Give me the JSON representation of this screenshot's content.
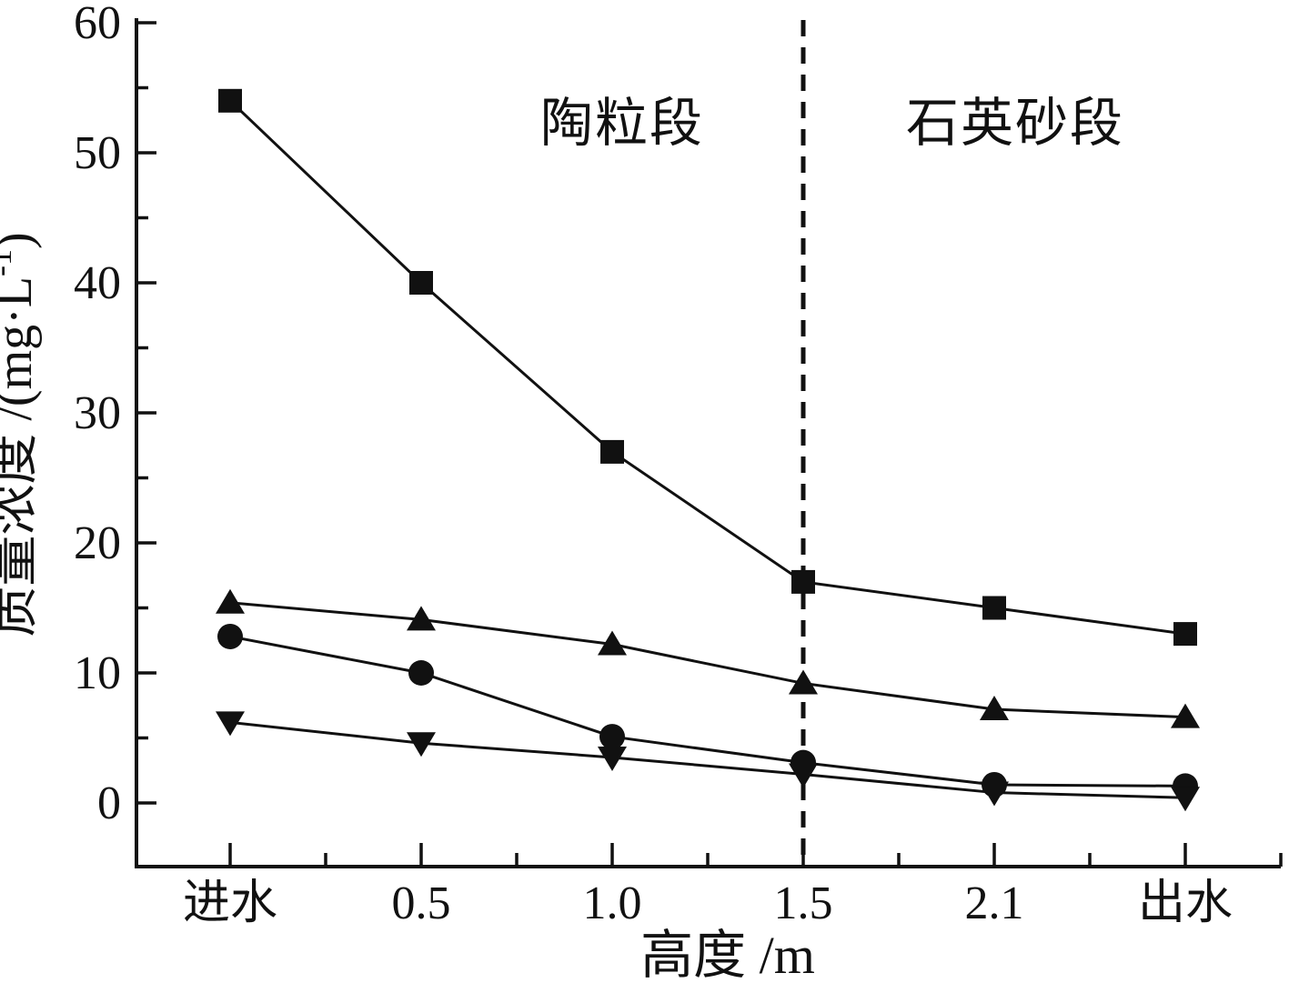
{
  "chart_data": {
    "type": "line",
    "title": "",
    "xlabel": "高度 /m",
    "ylabel": "质量浓度 /(mg·L⁻¹)",
    "ylabel_parts": {
      "prefix": "质量浓度 /(mg·L",
      "sup": "-1",
      "suffix": ")"
    },
    "categories": [
      "进水",
      "0.5",
      "1.0",
      "1.5",
      "2.1",
      "出水"
    ],
    "series": [
      {
        "name": "square-series",
        "marker": "square",
        "values": [
          54,
          40,
          27,
          17,
          15,
          13
        ]
      },
      {
        "name": "triangle-up-series",
        "marker": "triangle-up",
        "values": [
          15.4,
          14.1,
          12.2,
          9.2,
          7.2,
          6.6
        ]
      },
      {
        "name": "circle-series",
        "marker": "circle",
        "values": [
          12.8,
          10,
          5.1,
          3.1,
          1.4,
          1.3
        ]
      },
      {
        "name": "triangle-down-series",
        "marker": "triangle-down",
        "values": [
          6.2,
          4.6,
          3.5,
          2.2,
          0.8,
          0.4
        ]
      }
    ],
    "y_ticks": [
      0,
      10,
      20,
      30,
      40,
      50,
      60
    ],
    "ylim": [
      0,
      60
    ],
    "grid": false,
    "legend": false,
    "divider": {
      "style": "dashed",
      "at_category": "1.5"
    },
    "annotations": [
      {
        "text": "陶粒段"
      },
      {
        "text": "石英砂段"
      }
    ],
    "line_color": "#111111",
    "background": "#ffffff"
  }
}
